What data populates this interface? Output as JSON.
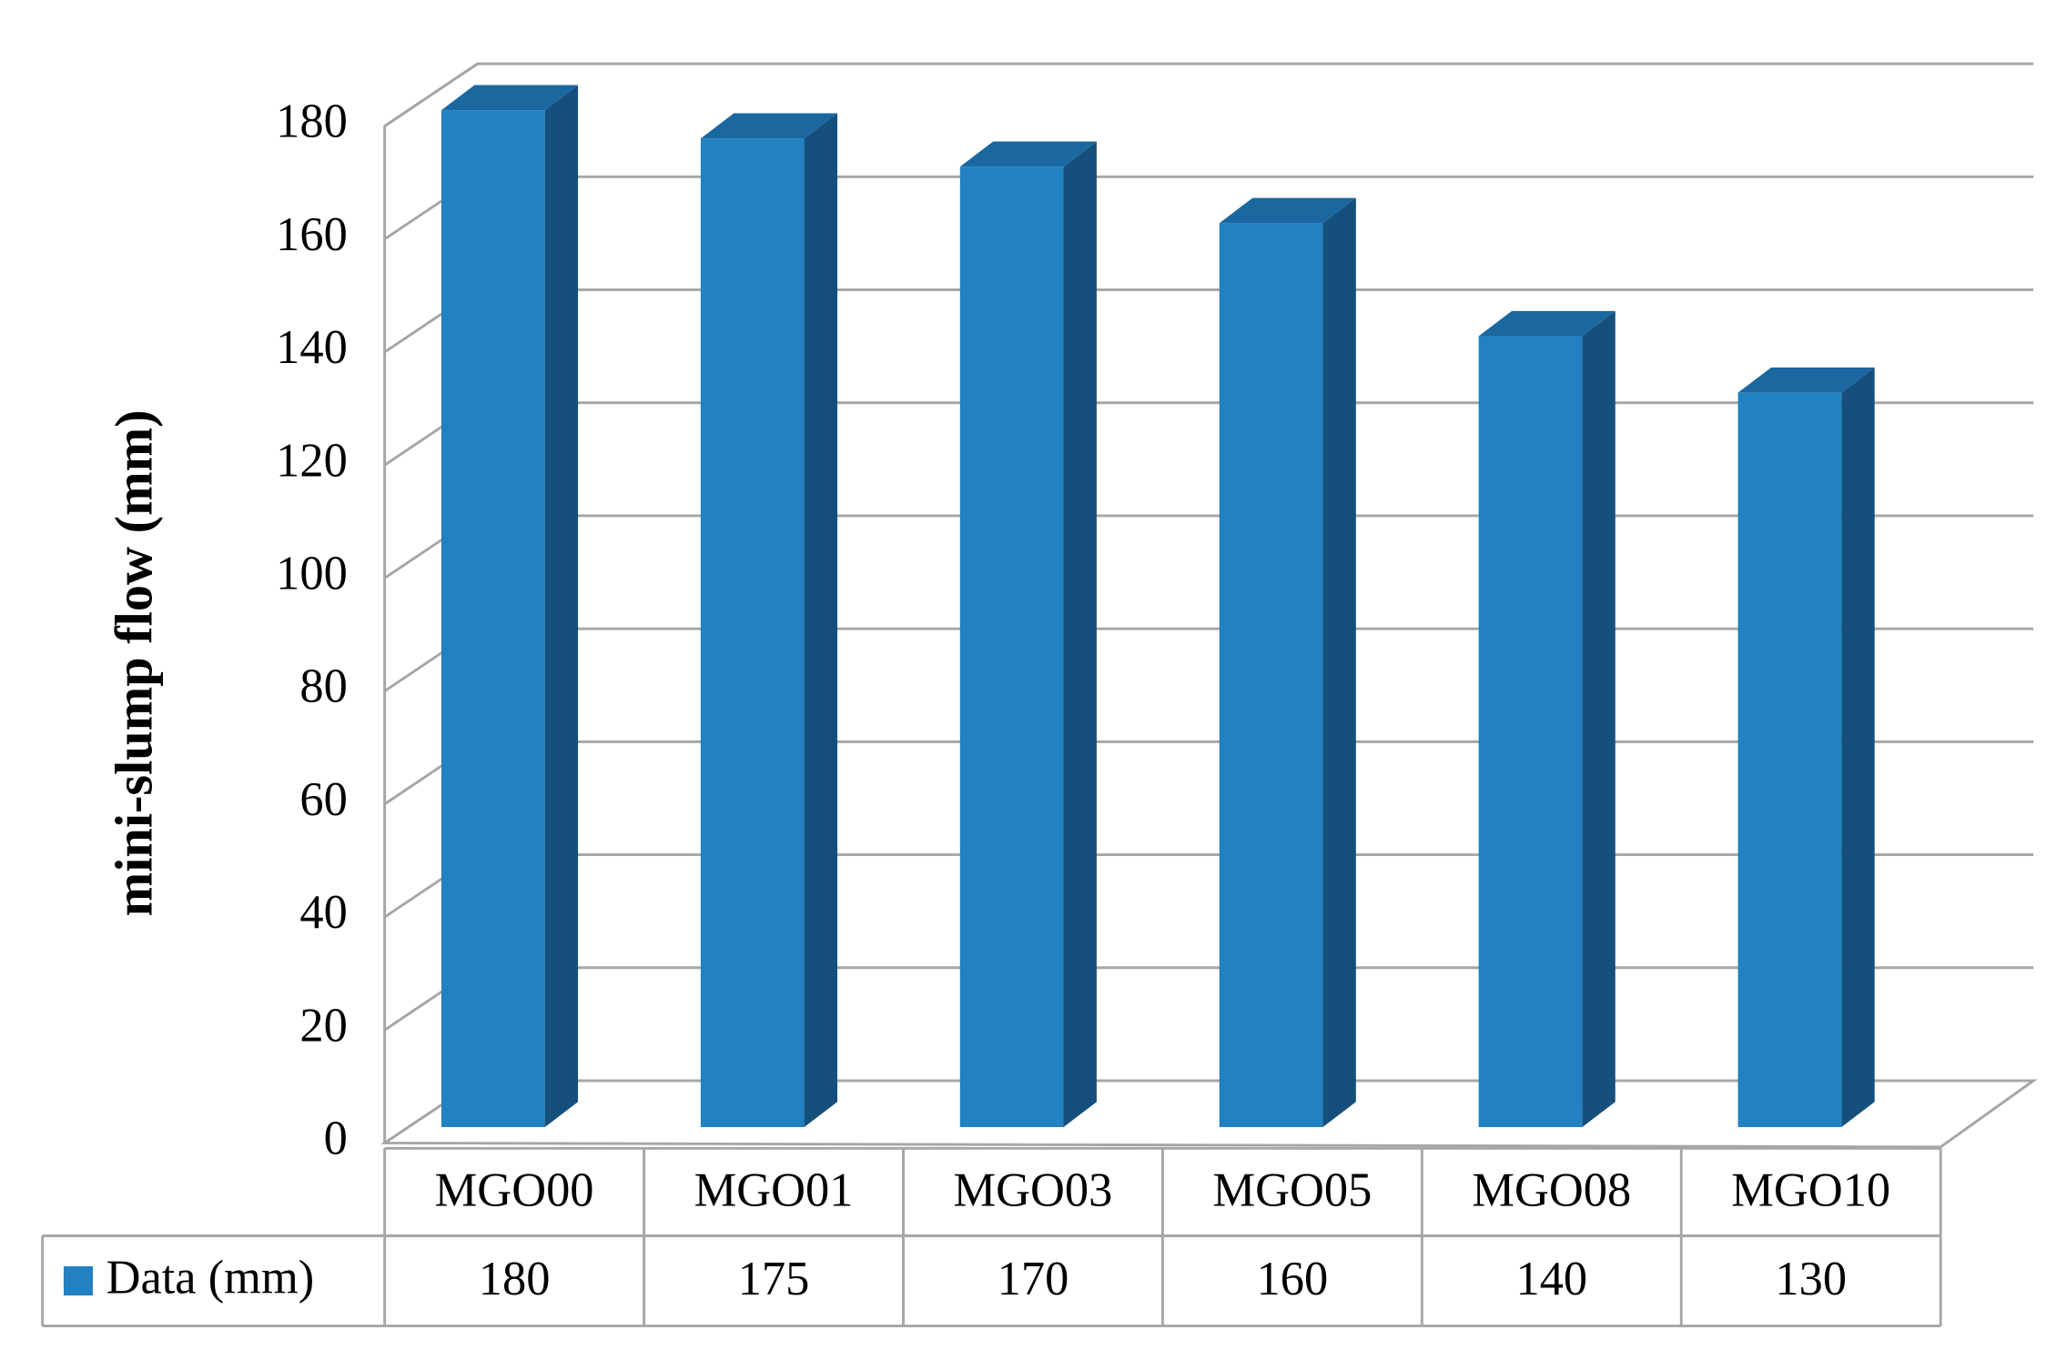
{
  "chart_data": {
    "type": "bar",
    "y_label": "mini-slump flow (mm)",
    "categories": [
      "MGO00",
      "MGO01",
      "MGO03",
      "MGO05",
      "MGO08",
      "MGO10"
    ],
    "series": [
      {
        "name": "Data (mm)",
        "color": "#2181c1",
        "values": [
          180,
          175,
          170,
          160,
          140,
          130
        ]
      }
    ],
    "ylim": [
      0,
      180
    ],
    "yticks": [
      0,
      20,
      40,
      60,
      80,
      100,
      120,
      140,
      160,
      180
    ],
    "grid": true,
    "data_table": true
  }
}
